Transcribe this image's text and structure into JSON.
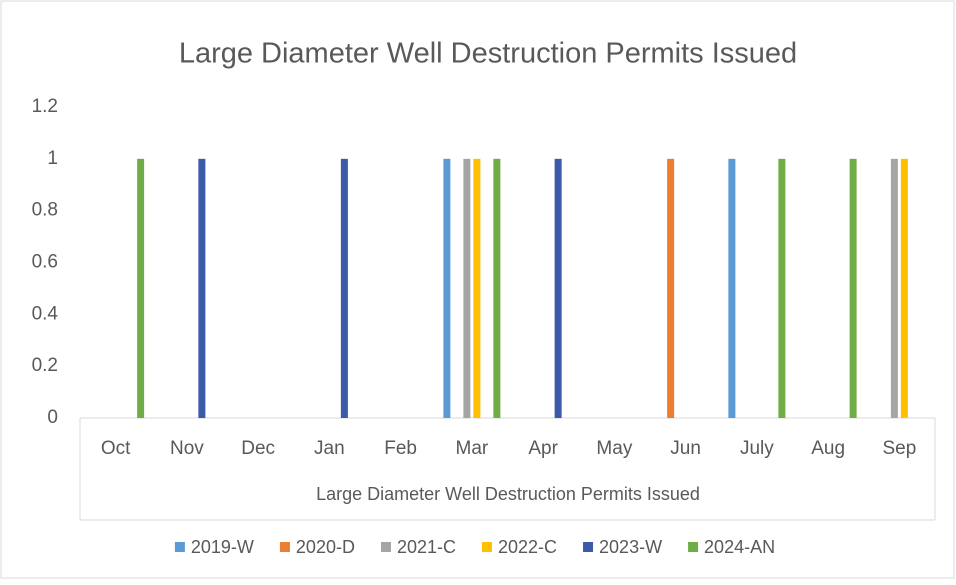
{
  "chart_data": {
    "type": "bar",
    "title": "Large Diameter Well Destruction Permits Issued",
    "xlabel": "Large Diameter Well Destruction Permits Issued",
    "categories": [
      "Oct",
      "Nov",
      "Dec",
      "Jan",
      "Feb",
      "Mar",
      "Apr",
      "May",
      "Jun",
      "July",
      "Aug",
      "Sep"
    ],
    "series": [
      {
        "name": "2019-W",
        "color": "#5b9bd5",
        "values": [
          0,
          0,
          0,
          0,
          0,
          1,
          0,
          0,
          0,
          1,
          0,
          0
        ]
      },
      {
        "name": "2020-D",
        "color": "#ed7d31",
        "values": [
          0,
          0,
          0,
          0,
          0,
          0,
          0,
          0,
          1,
          0,
          0,
          0
        ]
      },
      {
        "name": "2021-C",
        "color": "#a5a5a5",
        "values": [
          0,
          0,
          0,
          0,
          0,
          1,
          0,
          0,
          0,
          0,
          0,
          1
        ]
      },
      {
        "name": "2022-C",
        "color": "#ffc000",
        "values": [
          0,
          0,
          0,
          0,
          0,
          1,
          0,
          0,
          0,
          0,
          0,
          1
        ]
      },
      {
        "name": "2023-W",
        "color": "#3b5aa8",
        "values": [
          0,
          1,
          0,
          1,
          0,
          0,
          1,
          0,
          0,
          0,
          0,
          0
        ]
      },
      {
        "name": "2024-AN",
        "color": "#70ad47",
        "values": [
          1,
          0,
          0,
          0,
          0,
          1,
          0,
          0,
          0,
          1,
          1,
          0
        ]
      }
    ],
    "ylim": [
      0,
      1.2
    ],
    "yticks": [
      0,
      0.2,
      0.4,
      0.6,
      0.8,
      1,
      1.2
    ],
    "grid": false,
    "legend": "bottom"
  }
}
